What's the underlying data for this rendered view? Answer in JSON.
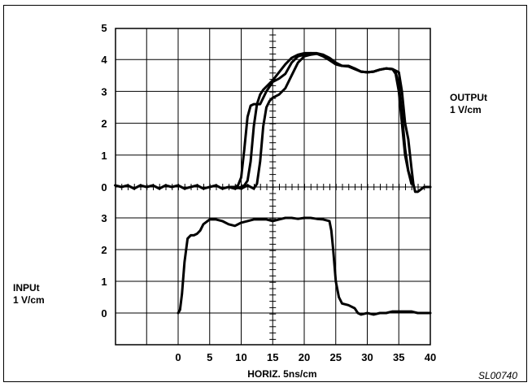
{
  "chart_data": {
    "type": "line",
    "xlabel": "HORIZ. 5ns/cm",
    "x_ticks": [
      "0",
      "5",
      "10",
      "15",
      "20",
      "25",
      "30",
      "35",
      "40"
    ],
    "xlim": [
      -10,
      40
    ],
    "grid": true,
    "panels": [
      {
        "name": "output",
        "ylabel_lines": [
          "OUTPUt",
          "1 V/cm"
        ],
        "y_ticks": [
          "0",
          "1",
          "2",
          "3",
          "4",
          "5"
        ],
        "ylim": [
          0,
          5
        ],
        "series": [
          {
            "x": [
              -10,
              -9,
              -8,
              -7,
              -6,
              -5,
              -4,
              -3,
              -2,
              -1,
              0,
              1,
              2,
              3,
              4,
              5,
              6,
              7,
              8,
              9,
              9.5,
              10,
              10.5,
              11,
              11.5,
              12,
              13,
              14,
              15,
              16,
              17,
              18,
              19,
              20,
              21,
              22,
              23,
              24,
              25,
              26,
              27,
              28,
              29,
              30,
              31,
              32,
              33,
              34,
              35,
              35.5,
              36,
              36.5,
              37,
              37.3,
              37.6,
              38,
              39,
              40
            ],
            "values": [
              0.05,
              0.0,
              0.05,
              -0.05,
              0.05,
              0.0,
              0.05,
              -0.05,
              0.05,
              0.0,
              0.05,
              -0.05,
              0.0,
              0.05,
              -0.05,
              0.0,
              0.05,
              -0.05,
              0.0,
              0.0,
              0.05,
              0.3,
              1.2,
              2.2,
              2.55,
              2.6,
              2.6,
              3.0,
              3.3,
              3.4,
              3.55,
              3.9,
              4.1,
              4.15,
              4.2,
              4.2,
              4.15,
              4.0,
              3.85,
              3.8,
              3.8,
              3.72,
              3.62,
              3.6,
              3.62,
              3.68,
              3.72,
              3.7,
              3.6,
              3.0,
              2.0,
              1.5,
              0.6,
              0.1,
              -0.15,
              -0.15,
              0.0,
              0.0
            ]
          },
          {
            "x": [
              8,
              9,
              10,
              10.5,
              11,
              11.5,
              12,
              12.5,
              13,
              13.5,
              14,
              15,
              16,
              17,
              18,
              19,
              20,
              21,
              22,
              23,
              24,
              25,
              26,
              27,
              28,
              29,
              30,
              31,
              32,
              33,
              34,
              34.5,
              35,
              35.5,
              36,
              36.5,
              37
            ],
            "values": [
              0.0,
              -0.05,
              0.0,
              0.05,
              0.2,
              0.8,
              1.9,
              2.6,
              2.9,
              3.05,
              3.15,
              3.35,
              3.6,
              3.85,
              4.05,
              4.15,
              4.2,
              4.2,
              4.18,
              4.1,
              3.98,
              3.85,
              3.8,
              3.78,
              3.7,
              3.62,
              3.6,
              3.62,
              3.68,
              3.72,
              3.7,
              3.55,
              3.0,
              2.0,
              1.0,
              0.5,
              0.2
            ]
          },
          {
            "x": [
              8,
              9,
              10,
              11,
              12,
              12.5,
              13,
              13.5,
              14,
              14.5,
              15,
              16,
              17,
              18,
              19,
              20,
              21,
              22,
              23,
              24,
              25,
              26,
              27,
              28,
              29,
              30,
              31,
              32,
              33,
              34,
              34.5,
              35,
              35.5,
              36,
              36.5,
              37
            ],
            "values": [
              0.0,
              0.0,
              -0.05,
              0.05,
              -0.05,
              0.1,
              0.8,
              1.9,
              2.5,
              2.7,
              2.8,
              2.9,
              3.1,
              3.5,
              3.9,
              4.1,
              4.15,
              4.18,
              4.15,
              4.05,
              3.9,
              3.8,
              3.8,
              3.72,
              3.62,
              3.6,
              3.62,
              3.68,
              3.72,
              3.7,
              3.6,
              3.2,
              2.3,
              1.2,
              0.5,
              0.1
            ]
          }
        ]
      },
      {
        "name": "input",
        "ylabel_lines": [
          "INPUt",
          "1 V/cm"
        ],
        "y_ticks": [
          "0",
          "1",
          "2",
          "3"
        ],
        "ylim": [
          -1,
          3.5
        ],
        "series": [
          {
            "x": [
              0,
              0.3,
              0.6,
              1,
              1.5,
              2,
              2.5,
              3,
              3.5,
              4,
              5,
              6,
              7,
              8,
              9,
              10,
              11,
              12,
              13,
              14,
              15,
              16,
              17,
              18,
              19,
              20,
              21,
              22,
              23,
              24,
              24.3,
              24.6,
              25,
              25.5,
              26,
              27,
              28,
              28.5,
              29,
              30,
              31,
              32,
              33,
              34,
              35,
              36,
              37,
              38,
              39,
              40
            ],
            "values": [
              0,
              0.1,
              0.6,
              1.6,
              2.35,
              2.45,
              2.45,
              2.5,
              2.6,
              2.8,
              2.95,
              2.95,
              2.9,
              2.8,
              2.75,
              2.85,
              2.9,
              2.95,
              2.95,
              2.95,
              2.9,
              2.95,
              3.0,
              3.0,
              2.97,
              3.0,
              3.0,
              2.97,
              2.95,
              2.9,
              2.6,
              2.0,
              1.0,
              0.5,
              0.3,
              0.25,
              0.15,
              0.0,
              -0.05,
              0.0,
              -0.05,
              0.0,
              0.0,
              0.05,
              0.05,
              0.05,
              0.05,
              0.0,
              0.0,
              0.0
            ]
          }
        ]
      }
    ],
    "annotation": "SL00740"
  }
}
